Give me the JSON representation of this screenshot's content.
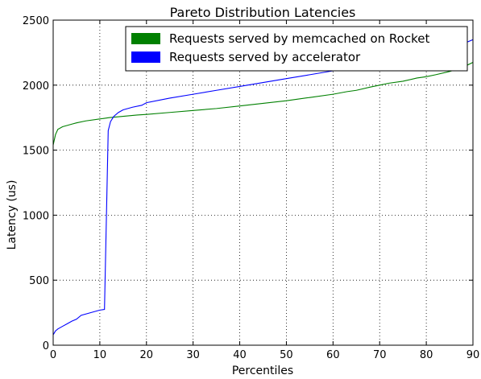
{
  "chart_data": {
    "type": "line",
    "title": "Pareto Distribution Latencies",
    "xlabel": "Percentiles",
    "ylabel": "Latency (us)",
    "xlim": [
      0,
      90
    ],
    "ylim": [
      0,
      2500
    ],
    "xticks": [
      0,
      10,
      20,
      30,
      40,
      50,
      60,
      70,
      80,
      90
    ],
    "yticks": [
      0,
      500,
      1000,
      1500,
      2000,
      2500
    ],
    "grid": true,
    "legend_position": "top-right",
    "series": [
      {
        "name": "Requests served by memcached on Rocket",
        "color": "#008000",
        "x": [
          0,
          0.5,
          1,
          2,
          3,
          4,
          5,
          7,
          10,
          12,
          15,
          18,
          20,
          25,
          30,
          35,
          40,
          45,
          50,
          55,
          60,
          63,
          65,
          68,
          70,
          72,
          75,
          78,
          80,
          82,
          85,
          88,
          90
        ],
        "y": [
          1540,
          1620,
          1660,
          1680,
          1690,
          1700,
          1710,
          1725,
          1740,
          1750,
          1760,
          1770,
          1775,
          1790,
          1805,
          1820,
          1840,
          1860,
          1880,
          1905,
          1930,
          1950,
          1960,
          1985,
          2000,
          2015,
          2030,
          2055,
          2065,
          2080,
          2105,
          2140,
          2175
        ]
      },
      {
        "name": "Requests served by accelerator",
        "color": "#0000ff",
        "x": [
          0,
          0.5,
          1,
          2,
          3,
          4,
          5,
          6,
          8,
          10,
          11,
          11.8,
          12.3,
          13,
          14,
          15,
          17,
          19,
          20,
          25,
          30,
          35,
          40,
          45,
          50,
          55,
          60,
          62,
          65,
          70,
          75,
          80,
          85,
          88,
          90
        ],
        "y": [
          80,
          110,
          125,
          145,
          165,
          185,
          200,
          230,
          250,
          270,
          275,
          1650,
          1720,
          1760,
          1790,
          1810,
          1830,
          1845,
          1865,
          1900,
          1930,
          1960,
          1990,
          2020,
          2050,
          2080,
          2110,
          2120,
          2150,
          2200,
          2230,
          2260,
          2290,
          2320,
          2350
        ]
      }
    ]
  }
}
